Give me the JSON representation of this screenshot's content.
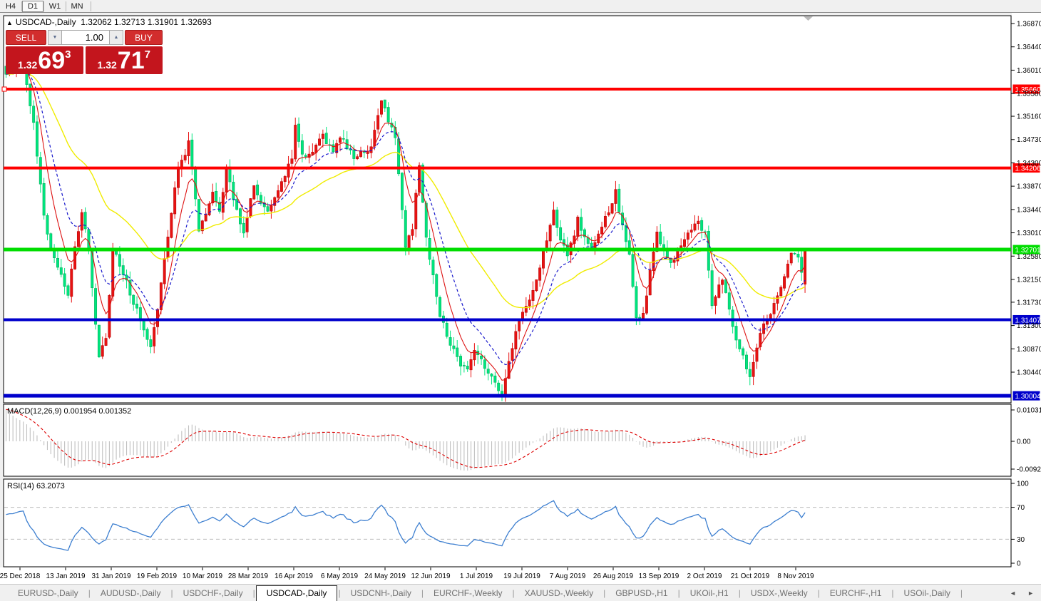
{
  "toolbar": {
    "timeframes": [
      {
        "label": "H4",
        "active": false
      },
      {
        "label": "D1",
        "active": true
      },
      {
        "label": "W1",
        "active": false
      },
      {
        "label": "MN",
        "active": false
      }
    ]
  },
  "chart_header": {
    "tick_arrow": "▲",
    "title": "USDCAD-,Daily",
    "ohlc_text": "1.32062 1.32713 1.31901 1.32693"
  },
  "trade_panel": {
    "sell_label": "SELL",
    "buy_label": "BUY",
    "volume": "1.00",
    "spinner_down": "▼",
    "spinner_up": "▲",
    "sell_price": {
      "prefix": "1.32",
      "big": "69",
      "sup": "3"
    },
    "buy_price": {
      "prefix": "1.32",
      "big": "71",
      "sup": "7"
    }
  },
  "price_axis": {
    "ticks": [
      "1.36870",
      "1.36440",
      "1.36010",
      "1.35580",
      "1.35160",
      "1.34730",
      "1.34300",
      "1.33870",
      "1.33440",
      "1.33010",
      "1.32580",
      "1.32150",
      "1.31730",
      "1.31300",
      "1.30870",
      "1.30440"
    ]
  },
  "macd_panel": {
    "label": "MACD(12,26,9) 0.001954 0.001352",
    "axis_ticks": [
      "0.010311",
      "0.00",
      "-0.00920"
    ]
  },
  "rsi_panel": {
    "label": "RSI(14) 63.2073",
    "axis_ticks": [
      "100",
      "70",
      "30",
      "0"
    ]
  },
  "date_axis": {
    "labels": [
      "25 Dec 2018",
      "13 Jan 2019",
      "31 Jan 2019",
      "19 Feb 2019",
      "10 Mar 2019",
      "28 Mar 2019",
      "16 Apr 2019",
      "6 May 2019",
      "24 May 2019",
      "12 Jun 2019",
      "1 Jul 2019",
      "19 Jul 2019",
      "7 Aug 2019",
      "26 Aug 2019",
      "13 Sep 2019",
      "2 Oct 2019",
      "21 Oct 2019",
      "8 Nov 2019"
    ]
  },
  "tabbar": {
    "scroll_left": "◄",
    "scroll_right": "►",
    "tabs": [
      {
        "label": "EURUSD-,Daily",
        "active": false
      },
      {
        "label": "AUDUSD-,Daily",
        "active": false
      },
      {
        "label": "USDCHF-,Daily",
        "active": false
      },
      {
        "label": "USDCAD-,Daily",
        "active": true
      },
      {
        "label": "USDCNH-,Daily",
        "active": false
      },
      {
        "label": "EURCHF-,Weekly",
        "active": false
      },
      {
        "label": "XAUUSD-,Weekly",
        "active": false
      },
      {
        "label": "GBPUSD-,H1",
        "active": false
      },
      {
        "label": "UKOil-,H1",
        "active": false
      },
      {
        "label": "USDX-,Weekly",
        "active": false
      },
      {
        "label": "EURCHF-,H1",
        "active": false
      },
      {
        "label": "USOil-,Daily",
        "active": false
      }
    ]
  },
  "chart_data": {
    "type": "candlestick",
    "symbol": "USDCAD",
    "timeframe": "Daily",
    "last_candle": {
      "open": 1.32062,
      "high": 1.32713,
      "low": 1.31901,
      "close": 1.32693
    },
    "n_candles": 233,
    "price_anchors": [
      [
        0,
        1.359
      ],
      [
        3,
        1.361
      ],
      [
        5,
        1.362
      ],
      [
        8,
        1.35
      ],
      [
        11,
        1.333
      ],
      [
        14,
        1.325
      ],
      [
        18,
        1.319
      ],
      [
        20,
        1.327
      ],
      [
        22,
        1.334
      ],
      [
        24,
        1.327
      ],
      [
        27,
        1.307
      ],
      [
        29,
        1.311
      ],
      [
        31,
        1.327
      ],
      [
        33,
        1.3245
      ],
      [
        36,
        1.319
      ],
      [
        39,
        1.314
      ],
      [
        42,
        1.3095
      ],
      [
        44,
        1.316
      ],
      [
        46,
        1.325
      ],
      [
        48,
        1.334
      ],
      [
        50,
        1.342
      ],
      [
        53,
        1.3465
      ],
      [
        56,
        1.331
      ],
      [
        58,
        1.334
      ],
      [
        60,
        1.3375
      ],
      [
        62,
        1.334
      ],
      [
        64,
        1.342
      ],
      [
        66,
        1.336
      ],
      [
        69,
        1.33
      ],
      [
        72,
        1.339
      ],
      [
        74,
        1.336
      ],
      [
        76,
        1.334
      ],
      [
        78,
        1.337
      ],
      [
        80,
        1.339
      ],
      [
        83,
        1.344
      ],
      [
        84,
        1.35
      ],
      [
        86,
        1.344
      ],
      [
        89,
        1.345
      ],
      [
        92,
        1.348
      ],
      [
        95,
        1.345
      ],
      [
        97,
        1.348
      ],
      [
        99,
        1.346
      ],
      [
        101,
        1.344
      ],
      [
        104,
        1.345
      ],
      [
        106,
        1.346
      ],
      [
        109,
        1.355
      ],
      [
        111,
        1.351
      ],
      [
        113,
        1.348
      ],
      [
        116,
        1.328
      ],
      [
        118,
        1.331
      ],
      [
        120,
        1.343
      ],
      [
        122,
        1.329
      ],
      [
        124,
        1.322
      ],
      [
        126,
        1.315
      ],
      [
        128,
        1.311
      ],
      [
        130,
        1.3085
      ],
      [
        132,
        1.306
      ],
      [
        134,
        1.3055
      ],
      [
        136,
        1.309
      ],
      [
        138,
        1.3065
      ],
      [
        140,
        1.304
      ],
      [
        142,
        1.303
      ],
      [
        144,
        1.2998
      ],
      [
        146,
        1.306
      ],
      [
        148,
        1.312
      ],
      [
        150,
        1.315
      ],
      [
        152,
        1.3175
      ],
      [
        155,
        1.324
      ],
      [
        157,
        1.329
      ],
      [
        159,
        1.334
      ],
      [
        161,
        1.329
      ],
      [
        163,
        1.3255
      ],
      [
        165,
        1.33
      ],
      [
        166,
        1.333
      ],
      [
        168,
        1.329
      ],
      [
        170,
        1.327
      ],
      [
        172,
        1.33
      ],
      [
        174,
        1.333
      ],
      [
        176,
        1.3355
      ],
      [
        177,
        1.338
      ],
      [
        179,
        1.331
      ],
      [
        181,
        1.326
      ],
      [
        183,
        1.314
      ],
      [
        185,
        1.315
      ],
      [
        187,
        1.323
      ],
      [
        189,
        1.33
      ],
      [
        191,
        1.327
      ],
      [
        193,
        1.324
      ],
      [
        195,
        1.327
      ],
      [
        197,
        1.329
      ],
      [
        199,
        1.331
      ],
      [
        201,
        1.332
      ],
      [
        203,
        1.33
      ],
      [
        205,
        1.317
      ],
      [
        207,
        1.32
      ],
      [
        208,
        1.322
      ],
      [
        210,
        1.316
      ],
      [
        212,
        1.31
      ],
      [
        214,
        1.307
      ],
      [
        216,
        1.304
      ],
      [
        218,
        1.309
      ],
      [
        220,
        1.313
      ],
      [
        222,
        1.3155
      ],
      [
        224,
        1.318
      ],
      [
        226,
        1.322
      ],
      [
        228,
        1.3265
      ],
      [
        230,
        1.325
      ],
      [
        231,
        1.323
      ],
      [
        232,
        1.32693
      ]
    ],
    "hlines": [
      {
        "price": 1.3566,
        "label": "1.35660",
        "color": "#ff0000",
        "width": 4,
        "name": "resistance-line-1"
      },
      {
        "price": 1.34206,
        "label": "1.34206",
        "color": "#ff0000",
        "width": 4,
        "name": "resistance-line-2"
      },
      {
        "price": 1.32701,
        "label": "1.32701",
        "color": "#00dd00",
        "width": 5,
        "name": "pivot-line"
      },
      {
        "price": 1.31407,
        "label": "1.31407",
        "color": "#0000cc",
        "width": 4,
        "name": "support-line-1"
      },
      {
        "price": 1.30004,
        "label": "1.30004",
        "color": "#0000cc",
        "width": 5,
        "name": "support-line-2"
      }
    ],
    "indicators": {
      "ma_fast_period": 7,
      "ma_mid_period": 14,
      "ma_slow_period": 40,
      "macd_params": [
        12,
        26,
        9
      ],
      "rsi_period": 14,
      "rsi_levels": [
        70,
        30
      ]
    },
    "colors": {
      "bull": "#e81212",
      "bull_edge": "#b00000",
      "bear": "#00e57e",
      "bear_edge": "#00a555",
      "ma_fast": "#dd1111",
      "ma_mid": "#1a1acc",
      "ma_slow": "#f0ec00",
      "macd_hist": "#c0c0c0",
      "macd_signal": "#dd0000",
      "rsi_line": "#3d7fd0",
      "rsi_level": "#bdbdbd"
    }
  }
}
